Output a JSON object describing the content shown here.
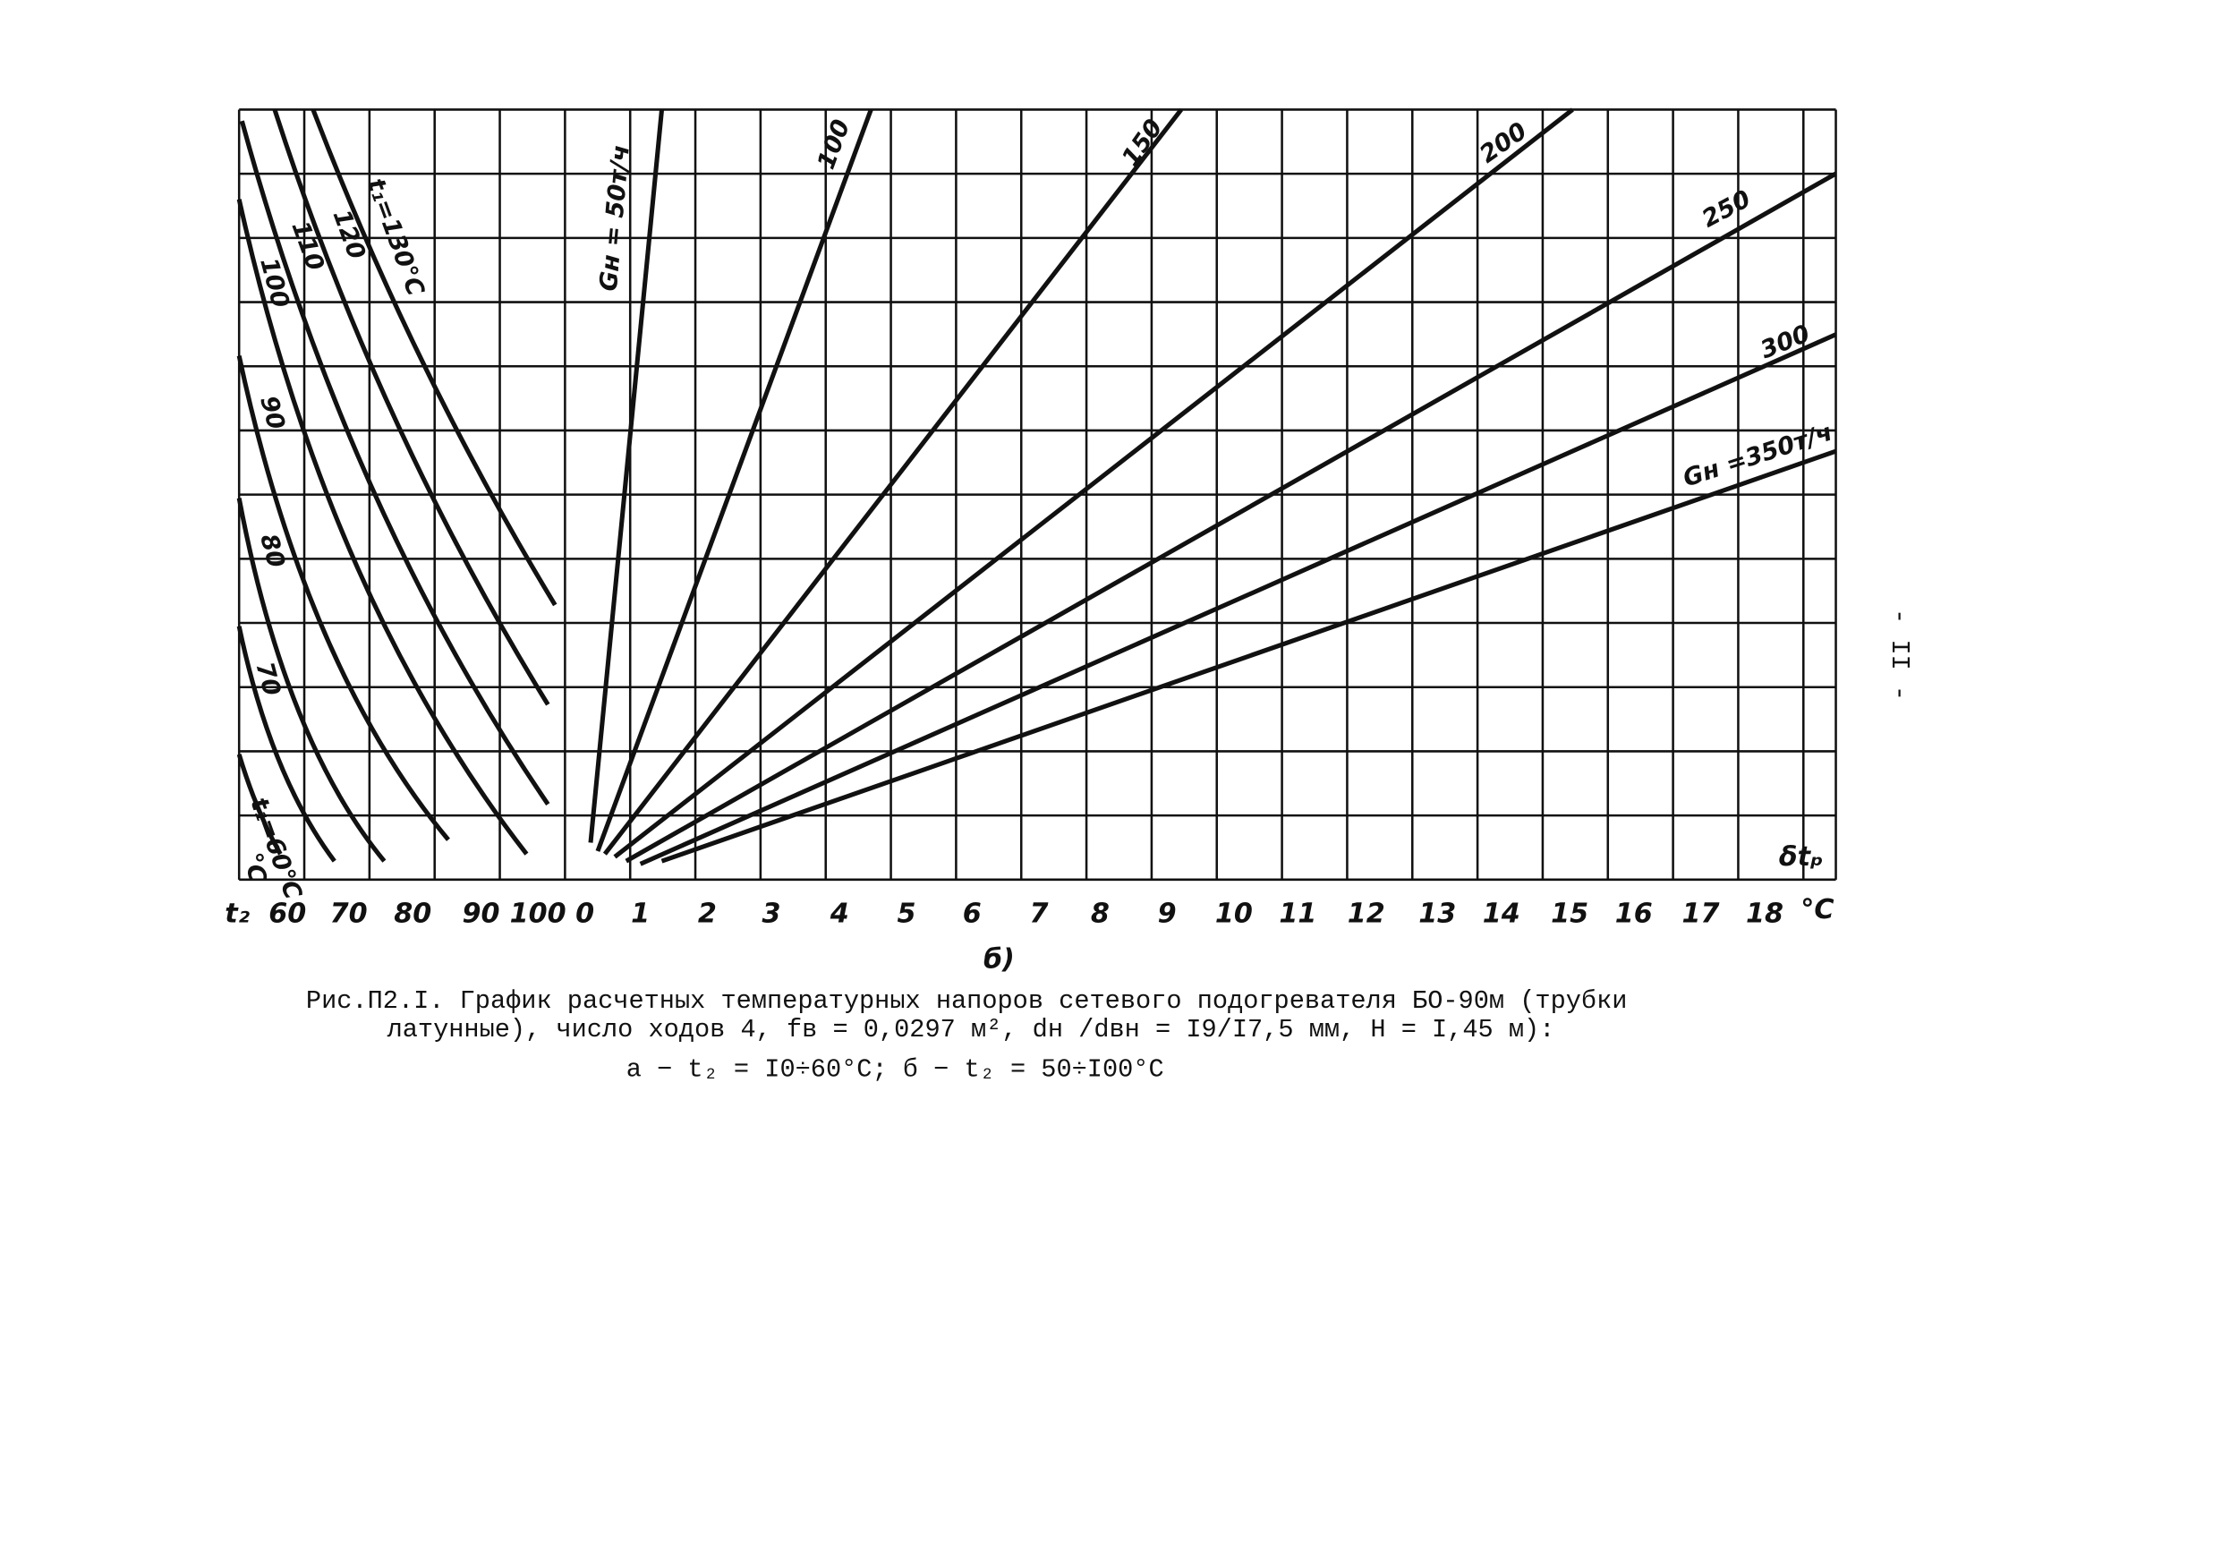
{
  "figure": {
    "left_axis_label": "t₂",
    "left_ticks": [
      "60",
      "70",
      "80",
      "90",
      "100"
    ],
    "right_ticks": [
      "0",
      "1",
      "2",
      "3",
      "4",
      "5",
      "6",
      "7",
      "8",
      "9",
      "10",
      "11",
      "12",
      "13",
      "14",
      "15",
      "16",
      "17",
      "18"
    ],
    "axis_unit": "°C",
    "corner_unit": "°C",
    "delta_label": "δtₚ",
    "t1_curves": [
      "t₁=130°C",
      "120",
      "110",
      "100",
      "90",
      "80",
      "70",
      "t₁=60°C"
    ],
    "flow_curves": [
      "Gн = 50т/ч",
      "100",
      "150",
      "200",
      "250",
      "300",
      "Gн =350т/ч"
    ],
    "panel_label": "б)"
  },
  "caption": {
    "lines": [
      "Рис.П2.I. График расчетных температурных напоров сетевого подогревателя БО-90м (трубки",
      "латунные), число ходов 4, fв = 0,0297 м², dн /dвн = I9/I7,5 мм, H = I,45 м):",
      "а − t₂ = I0÷60°C; б − t₂ = 50÷I00°C"
    ]
  },
  "page_number": "- II -"
}
